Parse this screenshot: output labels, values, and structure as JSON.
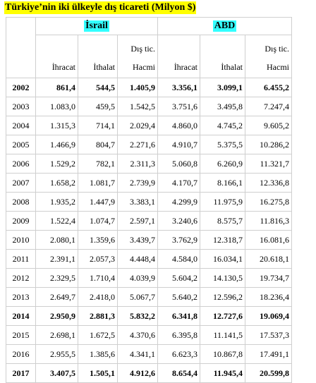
{
  "title": "Türkiye’nin iki ülkeyle dış ticareti (Milyon $)",
  "countries": [
    "İsrail",
    "ABD"
  ],
  "columns": {
    "export": "İhracat",
    "import": "İthalat",
    "volume_line1": "Dış tic.",
    "volume_line2": "Hacmi"
  },
  "highlight_color": "#33ffff",
  "title_highlight_color": "#ffff00",
  "rows": [
    {
      "year": "2002",
      "bold": true,
      "v": [
        "861,4",
        "544,5",
        "1.405,9",
        "3.356,1",
        "3.099,1",
        "6.455,2"
      ]
    },
    {
      "year": "2003",
      "bold": false,
      "v": [
        "1.083,0",
        "459,5",
        "1.542,5",
        "3.751,6",
        "3.495,8",
        "7.247,4"
      ]
    },
    {
      "year": "2004",
      "bold": false,
      "v": [
        "1.315,3",
        "714,1",
        "2.029,4",
        "4.860,0",
        "4.745,2",
        "9.605,2"
      ]
    },
    {
      "year": "2005",
      "bold": false,
      "v": [
        "1.466,9",
        "804,7",
        "2.271,6",
        "4.910,7",
        "5.375,5",
        "10.286,2"
      ]
    },
    {
      "year": "2006",
      "bold": false,
      "v": [
        "1.529,2",
        "782,1",
        "2.311,3",
        "5.060,8",
        "6.260,9",
        "11.321,7"
      ]
    },
    {
      "year": "2007",
      "bold": false,
      "v": [
        "1.658,2",
        "1.081,7",
        "2.739,9",
        "4.170,7",
        "8.166,1",
        "12.336,8"
      ]
    },
    {
      "year": "2008",
      "bold": false,
      "v": [
        "1.935,2",
        "1.447,9",
        "3.383,1",
        "4.299,9",
        "11.975,9",
        "16.275,8"
      ]
    },
    {
      "year": "2009",
      "bold": false,
      "v": [
        "1.522,4",
        "1.074,7",
        "2.597,1",
        "3.240,6",
        "8.575,7",
        "11.816,3"
      ]
    },
    {
      "year": "2010",
      "bold": false,
      "v": [
        "2.080,1",
        "1.359,6",
        "3.439,7",
        "3.762,9",
        "12.318,7",
        "16.081,6"
      ]
    },
    {
      "year": "2011",
      "bold": false,
      "v": [
        "2.391,1",
        "2.057,3",
        "4.448,4",
        "4.584,0",
        "16.034,1",
        "20.618,1"
      ]
    },
    {
      "year": "2012",
      "bold": false,
      "v": [
        "2.329,5",
        "1.710,4",
        "4.039,9",
        "5.604,2",
        "14.130,5",
        "19.734,7"
      ]
    },
    {
      "year": "2013",
      "bold": false,
      "v": [
        "2.649,7",
        "2.418,0",
        "5.067,7",
        "5.640,2",
        "12.596,2",
        "18.236,4"
      ]
    },
    {
      "year": "2014",
      "bold": true,
      "v": [
        "2.950,9",
        "2.881,3",
        "5.832,2",
        "6.341,8",
        "12.727,6",
        "19.069,4"
      ]
    },
    {
      "year": "2015",
      "bold": false,
      "v": [
        "2.698,1",
        "1.672,5",
        "4.370,6",
        "6.395,8",
        "11.141,5",
        "17.537,3"
      ]
    },
    {
      "year": "2016",
      "bold": false,
      "v": [
        "2.955,5",
        "1.385,6",
        "4.341,1",
        "6.623,3",
        "10.867,8",
        "17.491,1"
      ]
    },
    {
      "year": "2017",
      "bold": true,
      "v": [
        "3.407,5",
        "1.505,1",
        "4.912,6",
        "8.654,4",
        "11.945,4",
        "20.599,8"
      ]
    }
  ]
}
